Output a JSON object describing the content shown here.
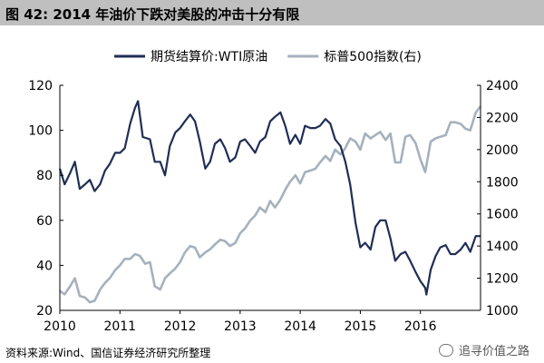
{
  "title": "图 42:  2014 年油价下跌对美股的冲击十分有限",
  "source": "资料来源:Wind、国信证券经济研究所整理",
  "watermark": "追寻价值之路",
  "chart_data": {
    "type": "line",
    "legend_position": "top",
    "grid": false,
    "x_axis": {
      "ticks": [
        "2010",
        "2011",
        "2012",
        "2013",
        "2014",
        "2015",
        "2016"
      ],
      "range": [
        2010,
        2017
      ]
    },
    "y_left": {
      "range": [
        20,
        120
      ],
      "ticks": [
        20,
        40,
        60,
        80,
        100,
        120
      ]
    },
    "y_right": {
      "range": [
        1000,
        2400
      ],
      "ticks": [
        1000,
        1200,
        1400,
        1600,
        1800,
        2000,
        2200,
        2400
      ]
    },
    "series": [
      {
        "name": "期货结算价:WTI原油",
        "axis": "left",
        "color": "#1f2e54",
        "points": [
          [
            2010.0,
            83
          ],
          [
            2010.08,
            76
          ],
          [
            2010.17,
            81
          ],
          [
            2010.25,
            86
          ],
          [
            2010.33,
            74
          ],
          [
            2010.42,
            76
          ],
          [
            2010.5,
            78
          ],
          [
            2010.58,
            73
          ],
          [
            2010.67,
            76
          ],
          [
            2010.75,
            82
          ],
          [
            2010.83,
            85
          ],
          [
            2010.92,
            90
          ],
          [
            2011.0,
            90
          ],
          [
            2011.08,
            92
          ],
          [
            2011.17,
            103
          ],
          [
            2011.25,
            110
          ],
          [
            2011.3,
            113
          ],
          [
            2011.38,
            97
          ],
          [
            2011.5,
            96
          ],
          [
            2011.58,
            86
          ],
          [
            2011.67,
            86
          ],
          [
            2011.75,
            80
          ],
          [
            2011.83,
            93
          ],
          [
            2011.92,
            99
          ],
          [
            2012.0,
            101
          ],
          [
            2012.08,
            104
          ],
          [
            2012.17,
            107
          ],
          [
            2012.25,
            104
          ],
          [
            2012.33,
            95
          ],
          [
            2012.42,
            83
          ],
          [
            2012.5,
            86
          ],
          [
            2012.58,
            94
          ],
          [
            2012.67,
            96
          ],
          [
            2012.75,
            92
          ],
          [
            2012.83,
            86
          ],
          [
            2012.92,
            88
          ],
          [
            2013.0,
            95
          ],
          [
            2013.08,
            96
          ],
          [
            2013.17,
            93
          ],
          [
            2013.25,
            90
          ],
          [
            2013.33,
            95
          ],
          [
            2013.42,
            97
          ],
          [
            2013.5,
            104
          ],
          [
            2013.58,
            106
          ],
          [
            2013.67,
            108
          ],
          [
            2013.75,
            102
          ],
          [
            2013.83,
            94
          ],
          [
            2013.92,
            98
          ],
          [
            2014.0,
            94
          ],
          [
            2014.08,
            102
          ],
          [
            2014.17,
            101
          ],
          [
            2014.25,
            101
          ],
          [
            2014.33,
            102
          ],
          [
            2014.42,
            105
          ],
          [
            2014.5,
            103
          ],
          [
            2014.58,
            96
          ],
          [
            2014.67,
            93
          ],
          [
            2014.75,
            86
          ],
          [
            2014.83,
            76
          ],
          [
            2014.92,
            59
          ],
          [
            2015.0,
            48
          ],
          [
            2015.08,
            50
          ],
          [
            2015.17,
            47
          ],
          [
            2015.25,
            57
          ],
          [
            2015.33,
            60
          ],
          [
            2015.42,
            60
          ],
          [
            2015.5,
            52
          ],
          [
            2015.58,
            42
          ],
          [
            2015.67,
            45
          ],
          [
            2015.75,
            46
          ],
          [
            2015.83,
            42
          ],
          [
            2015.92,
            37
          ],
          [
            2016.0,
            33
          ],
          [
            2016.08,
            30
          ],
          [
            2016.1,
            27
          ],
          [
            2016.17,
            38
          ],
          [
            2016.25,
            44
          ],
          [
            2016.33,
            48
          ],
          [
            2016.42,
            49
          ],
          [
            2016.5,
            45
          ],
          [
            2016.58,
            45
          ],
          [
            2016.67,
            47
          ],
          [
            2016.75,
            50
          ],
          [
            2016.83,
            46
          ],
          [
            2016.92,
            53
          ],
          [
            2017.0,
            53
          ]
        ]
      },
      {
        "name": "标普500指数(右)",
        "axis": "right",
        "color": "#a6b1bd",
        "points": [
          [
            2010.0,
            1120
          ],
          [
            2010.08,
            1100
          ],
          [
            2010.17,
            1150
          ],
          [
            2010.25,
            1200
          ],
          [
            2010.33,
            1090
          ],
          [
            2010.42,
            1080
          ],
          [
            2010.5,
            1050
          ],
          [
            2010.58,
            1060
          ],
          [
            2010.67,
            1130
          ],
          [
            2010.75,
            1170
          ],
          [
            2010.83,
            1200
          ],
          [
            2010.92,
            1250
          ],
          [
            2011.0,
            1280
          ],
          [
            2011.08,
            1320
          ],
          [
            2011.17,
            1320
          ],
          [
            2011.25,
            1350
          ],
          [
            2011.33,
            1340
          ],
          [
            2011.42,
            1290
          ],
          [
            2011.5,
            1300
          ],
          [
            2011.58,
            1150
          ],
          [
            2011.67,
            1130
          ],
          [
            2011.75,
            1200
          ],
          [
            2011.83,
            1230
          ],
          [
            2011.92,
            1260
          ],
          [
            2012.0,
            1300
          ],
          [
            2012.08,
            1360
          ],
          [
            2012.17,
            1400
          ],
          [
            2012.25,
            1390
          ],
          [
            2012.33,
            1330
          ],
          [
            2012.42,
            1360
          ],
          [
            2012.5,
            1380
          ],
          [
            2012.58,
            1410
          ],
          [
            2012.67,
            1440
          ],
          [
            2012.75,
            1430
          ],
          [
            2012.83,
            1400
          ],
          [
            2012.92,
            1420
          ],
          [
            2013.0,
            1480
          ],
          [
            2013.08,
            1510
          ],
          [
            2013.17,
            1560
          ],
          [
            2013.25,
            1590
          ],
          [
            2013.33,
            1640
          ],
          [
            2013.42,
            1610
          ],
          [
            2013.5,
            1680
          ],
          [
            2013.58,
            1640
          ],
          [
            2013.67,
            1690
          ],
          [
            2013.75,
            1750
          ],
          [
            2013.83,
            1800
          ],
          [
            2013.92,
            1840
          ],
          [
            2014.0,
            1790
          ],
          [
            2014.08,
            1860
          ],
          [
            2014.17,
            1870
          ],
          [
            2014.25,
            1880
          ],
          [
            2014.33,
            1920
          ],
          [
            2014.42,
            1960
          ],
          [
            2014.5,
            1930
          ],
          [
            2014.58,
            2000
          ],
          [
            2014.67,
            1970
          ],
          [
            2014.75,
            2010
          ],
          [
            2014.83,
            2070
          ],
          [
            2014.92,
            2050
          ],
          [
            2015.0,
            2000
          ],
          [
            2015.08,
            2100
          ],
          [
            2015.17,
            2070
          ],
          [
            2015.25,
            2090
          ],
          [
            2015.33,
            2110
          ],
          [
            2015.42,
            2060
          ],
          [
            2015.5,
            2100
          ],
          [
            2015.58,
            1920
          ],
          [
            2015.67,
            1920
          ],
          [
            2015.75,
            2080
          ],
          [
            2015.83,
            2090
          ],
          [
            2015.92,
            2040
          ],
          [
            2016.0,
            1940
          ],
          [
            2016.08,
            1860
          ],
          [
            2016.17,
            2050
          ],
          [
            2016.25,
            2070
          ],
          [
            2016.33,
            2080
          ],
          [
            2016.42,
            2090
          ],
          [
            2016.5,
            2170
          ],
          [
            2016.58,
            2170
          ],
          [
            2016.67,
            2160
          ],
          [
            2016.75,
            2130
          ],
          [
            2016.83,
            2120
          ],
          [
            2016.92,
            2230
          ],
          [
            2017.0,
            2270
          ]
        ]
      }
    ]
  }
}
